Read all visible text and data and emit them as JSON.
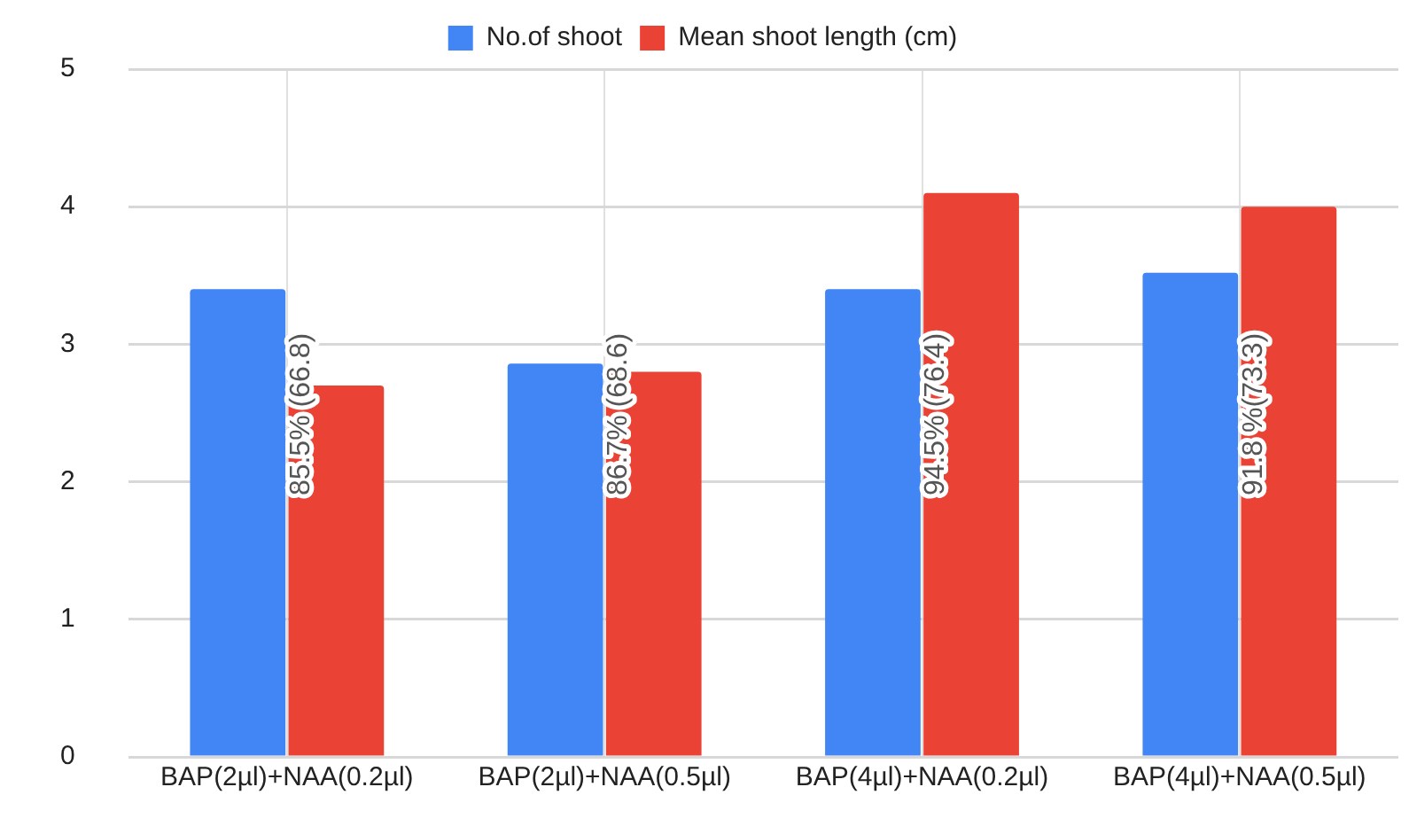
{
  "chart_data": {
    "type": "bar",
    "categories": [
      "BAP(2µl)+NAA(0.2µl)",
      "BAP(2µl)+NAA(0.5µl)",
      "BAP(4µl)+NAA(0.2µl)",
      "BAP(4µl)+NAA(0.5µl)"
    ],
    "series": [
      {
        "name": "No.of shoot",
        "color": "#4285f4",
        "values": [
          3.4,
          2.86,
          3.4,
          3.52
        ]
      },
      {
        "name": "Mean shoot length (cm)",
        "color": "#ea4335",
        "values": [
          2.7,
          2.8,
          4.1,
          4.0
        ]
      }
    ],
    "ylim": [
      0,
      5
    ],
    "yticks": [
      0,
      1,
      2,
      3,
      4,
      5
    ],
    "grid": true,
    "legend": "top",
    "annotations": [
      {
        "text": "85.5% (66.8)",
        "x": "BAP(2µl)+NAA(0.2µl)",
        "y": 1.9
      },
      {
        "text": "86.7% (68.6)",
        "x": "BAP(2µl)+NAA(0.5µl)",
        "y": 1.9
      },
      {
        "text": "94.5% (76.4)",
        "x": "BAP(4µl)+NAA(0.2µl)",
        "y": 1.9
      },
      {
        "text": "91.8 %(73.3)",
        "x": "BAP(4µl)+NAA(0.5µl)",
        "y": 1.9
      }
    ]
  }
}
